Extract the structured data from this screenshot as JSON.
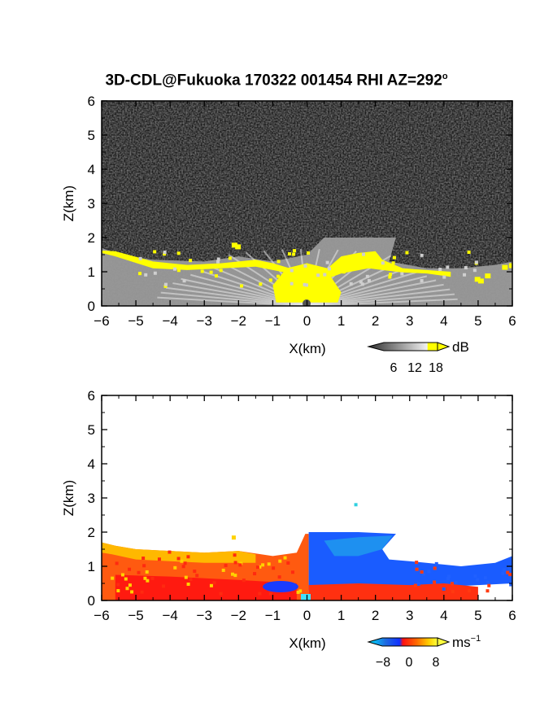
{
  "title": "3D-CDL@Fukuoka 170322 001454 RHI AZ=292",
  "title_superscript": "o",
  "chart_data": [
    {
      "type": "heatmap",
      "panel": "reflectivity",
      "xlabel": "X(km)",
      "ylabel": "Z(km)",
      "xlim": [
        -6,
        6
      ],
      "ylim": [
        0,
        6
      ],
      "x_ticks": [
        "−6",
        "−5",
        "−4",
        "−3",
        "−2",
        "−1",
        "0",
        "1",
        "2",
        "3",
        "4",
        "5",
        "6"
      ],
      "y_ticks": [
        "0",
        "1",
        "2",
        "3",
        "4",
        "5",
        "6"
      ],
      "colorbar": {
        "unit": "dB",
        "ticks": [
          "6",
          "12",
          "18"
        ],
        "colors": [
          "#202020",
          "#606060",
          "#a0a0a0",
          "#e0e0e0",
          "#ffff00"
        ]
      },
      "echo_top_km": [
        {
          "x": -6.0,
          "z": 1.7
        },
        {
          "x": -5.5,
          "z": 1.5
        },
        {
          "x": -4.5,
          "z": 1.35
        },
        {
          "x": -3.0,
          "z": 1.3
        },
        {
          "x": -2.0,
          "z": 1.45
        },
        {
          "x": -1.0,
          "z": 1.3
        },
        {
          "x": 0.0,
          "z": 1.5
        },
        {
          "x": 0.5,
          "z": 2.0
        },
        {
          "x": 1.5,
          "z": 2.0
        },
        {
          "x": 2.6,
          "z": 2.0
        },
        {
          "x": 2.4,
          "z": 1.3
        },
        {
          "x": 3.5,
          "z": 1.1
        },
        {
          "x": 4.5,
          "z": 1.1
        },
        {
          "x": 5.5,
          "z": 1.2
        },
        {
          "x": 6.0,
          "z": 1.3
        }
      ]
    },
    {
      "type": "heatmap",
      "panel": "doppler_velocity",
      "xlabel": "X(km)",
      "ylabel": "Z(km)",
      "xlim": [
        -6,
        6
      ],
      "ylim": [
        0,
        6
      ],
      "x_ticks": [
        "−6",
        "−5",
        "−4",
        "−3",
        "−2",
        "−1",
        "0",
        "1",
        "2",
        "3",
        "4",
        "5",
        "6"
      ],
      "y_ticks": [
        "0",
        "1",
        "2",
        "3",
        "4",
        "5",
        "6"
      ],
      "colorbar": {
        "unit": "ms",
        "unit_exponent": "−1",
        "ticks": [
          "−8",
          "0",
          "8"
        ],
        "colors": [
          "#00e5ff",
          "#1e6ae0",
          "#0030ff",
          "#ff1010",
          "#ff6a00",
          "#ffd200",
          "#ffff40"
        ]
      },
      "regions": [
        {
          "x_range": [
            -6.0,
            0.0
          ],
          "z_range": [
            0.0,
            1.7
          ],
          "velocity_ms": 6
        },
        {
          "x_range": [
            -6.0,
            0.0
          ],
          "z_range": [
            0.0,
            0.6
          ],
          "velocity_ms": 1
        },
        {
          "x_range": [
            0.0,
            2.6
          ],
          "z_range": [
            0.3,
            2.0
          ],
          "velocity_ms": -6
        },
        {
          "x_range": [
            2.6,
            6.0
          ],
          "z_range": [
            0.3,
            1.1
          ],
          "velocity_ms": -7
        },
        {
          "x_range": [
            0.0,
            5.0
          ],
          "z_range": [
            0.0,
            0.3
          ],
          "velocity_ms": 1
        }
      ]
    }
  ]
}
